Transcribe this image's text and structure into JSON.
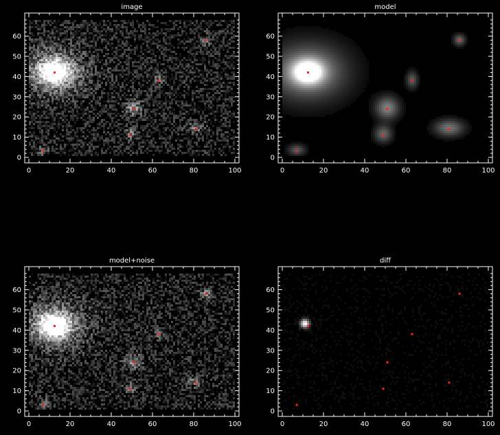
{
  "figure": {
    "background": "#000000",
    "axis_color": "#ffffff",
    "source_color": "#ff2020"
  },
  "chart_data": [
    {
      "type": "heatmap",
      "title": "image",
      "xlim": [
        0,
        100
      ],
      "ylim": [
        0,
        68
      ],
      "xticks": [
        0,
        20,
        40,
        60,
        80,
        100
      ],
      "yticks": [
        0,
        10,
        20,
        30,
        40,
        50,
        60
      ],
      "noise": 0.5,
      "sources": [
        {
          "x": 12.5,
          "y": 42,
          "peak": 1.0,
          "sx": 5,
          "sy": 4,
          "halo": 0.45,
          "hx": 12,
          "hy": 9
        },
        {
          "x": 51,
          "y": 24,
          "peak": 0.45,
          "sx": 3,
          "sy": 3
        },
        {
          "x": 63,
          "y": 38,
          "peak": 0.35,
          "sx": 2,
          "sy": 2
        },
        {
          "x": 86,
          "y": 58,
          "peak": 0.35,
          "sx": 2,
          "sy": 2
        },
        {
          "x": 49,
          "y": 11,
          "peak": 0.35,
          "sx": 2,
          "sy": 2
        },
        {
          "x": 81,
          "y": 14,
          "peak": 0.35,
          "sx": 3,
          "sy": 2
        },
        {
          "x": 7,
          "y": 3,
          "peak": 0.3,
          "sx": 2,
          "sy": 2
        }
      ],
      "markers": [
        {
          "x": 12.5,
          "y": 42
        },
        {
          "x": 51,
          "y": 24
        },
        {
          "x": 63,
          "y": 38
        },
        {
          "x": 86,
          "y": 58
        },
        {
          "x": 49,
          "y": 11
        },
        {
          "x": 81,
          "y": 14
        },
        {
          "x": 7,
          "y": 3
        }
      ]
    },
    {
      "type": "heatmap",
      "title": "model",
      "xlim": [
        0,
        100
      ],
      "ylim": [
        0,
        68
      ],
      "xticks": [
        0,
        20,
        40,
        60,
        80,
        100
      ],
      "yticks": [
        0,
        10,
        20,
        30,
        40,
        50,
        60
      ],
      "noise": 0.0,
      "sources": [
        {
          "x": 12.5,
          "y": 42,
          "peak": 1.0,
          "sx": 5,
          "sy": 4,
          "halo": 0.55,
          "hx": 13,
          "hy": 10
        },
        {
          "x": 51,
          "y": 24,
          "peak": 0.5,
          "sx": 4,
          "sy": 4
        },
        {
          "x": 63,
          "y": 38,
          "peak": 0.35,
          "sx": 2,
          "sy": 3
        },
        {
          "x": 86,
          "y": 58,
          "peak": 0.4,
          "sx": 2,
          "sy": 2
        },
        {
          "x": 49,
          "y": 11,
          "peak": 0.4,
          "sx": 3,
          "sy": 3
        },
        {
          "x": 81,
          "y": 14,
          "peak": 0.45,
          "sx": 5,
          "sy": 3
        },
        {
          "x": 7,
          "y": 3,
          "peak": 0.35,
          "sx": 3,
          "sy": 2
        }
      ],
      "markers": [
        {
          "x": 12.5,
          "y": 42
        },
        {
          "x": 51,
          "y": 24
        },
        {
          "x": 63,
          "y": 38
        },
        {
          "x": 86,
          "y": 58
        },
        {
          "x": 49,
          "y": 11
        },
        {
          "x": 81,
          "y": 14
        },
        {
          "x": 7,
          "y": 3
        }
      ]
    },
    {
      "type": "heatmap",
      "title": "model+noise",
      "xlim": [
        0,
        100
      ],
      "ylim": [
        0,
        68
      ],
      "xticks": [
        0,
        20,
        40,
        60,
        80,
        100
      ],
      "yticks": [
        0,
        10,
        20,
        30,
        40,
        50,
        60
      ],
      "noise": 0.5,
      "sources": [
        {
          "x": 12.5,
          "y": 42,
          "peak": 1.0,
          "sx": 5,
          "sy": 4,
          "halo": 0.45,
          "hx": 12,
          "hy": 9
        },
        {
          "x": 51,
          "y": 24,
          "peak": 0.45,
          "sx": 3,
          "sy": 3
        },
        {
          "x": 63,
          "y": 38,
          "peak": 0.35,
          "sx": 2,
          "sy": 2
        },
        {
          "x": 86,
          "y": 58,
          "peak": 0.35,
          "sx": 2,
          "sy": 2
        },
        {
          "x": 49,
          "y": 11,
          "peak": 0.35,
          "sx": 2,
          "sy": 2
        },
        {
          "x": 81,
          "y": 14,
          "peak": 0.35,
          "sx": 3,
          "sy": 2
        },
        {
          "x": 7,
          "y": 3,
          "peak": 0.3,
          "sx": 2,
          "sy": 2
        }
      ],
      "markers": [
        {
          "x": 12.5,
          "y": 42
        },
        {
          "x": 51,
          "y": 24
        },
        {
          "x": 63,
          "y": 38
        },
        {
          "x": 86,
          "y": 58
        },
        {
          "x": 49,
          "y": 11
        },
        {
          "x": 81,
          "y": 14
        },
        {
          "x": 7,
          "y": 3
        }
      ]
    },
    {
      "type": "heatmap",
      "title": "diff",
      "xlim": [
        0,
        100
      ],
      "ylim": [
        0,
        68
      ],
      "xticks": [
        0,
        20,
        40,
        60,
        80,
        100
      ],
      "yticks": [
        0,
        10,
        20,
        30,
        40,
        50,
        60
      ],
      "noise": 0.08,
      "sources": [
        {
          "x": 11,
          "y": 43,
          "peak": 1.0,
          "sx": 1.5,
          "sy": 1.5
        }
      ],
      "markers": [
        {
          "x": 12.5,
          "y": 42
        },
        {
          "x": 51,
          "y": 24
        },
        {
          "x": 63,
          "y": 38
        },
        {
          "x": 86,
          "y": 58
        },
        {
          "x": 49,
          "y": 11
        },
        {
          "x": 81,
          "y": 14
        },
        {
          "x": 7,
          "y": 3
        }
      ]
    }
  ]
}
